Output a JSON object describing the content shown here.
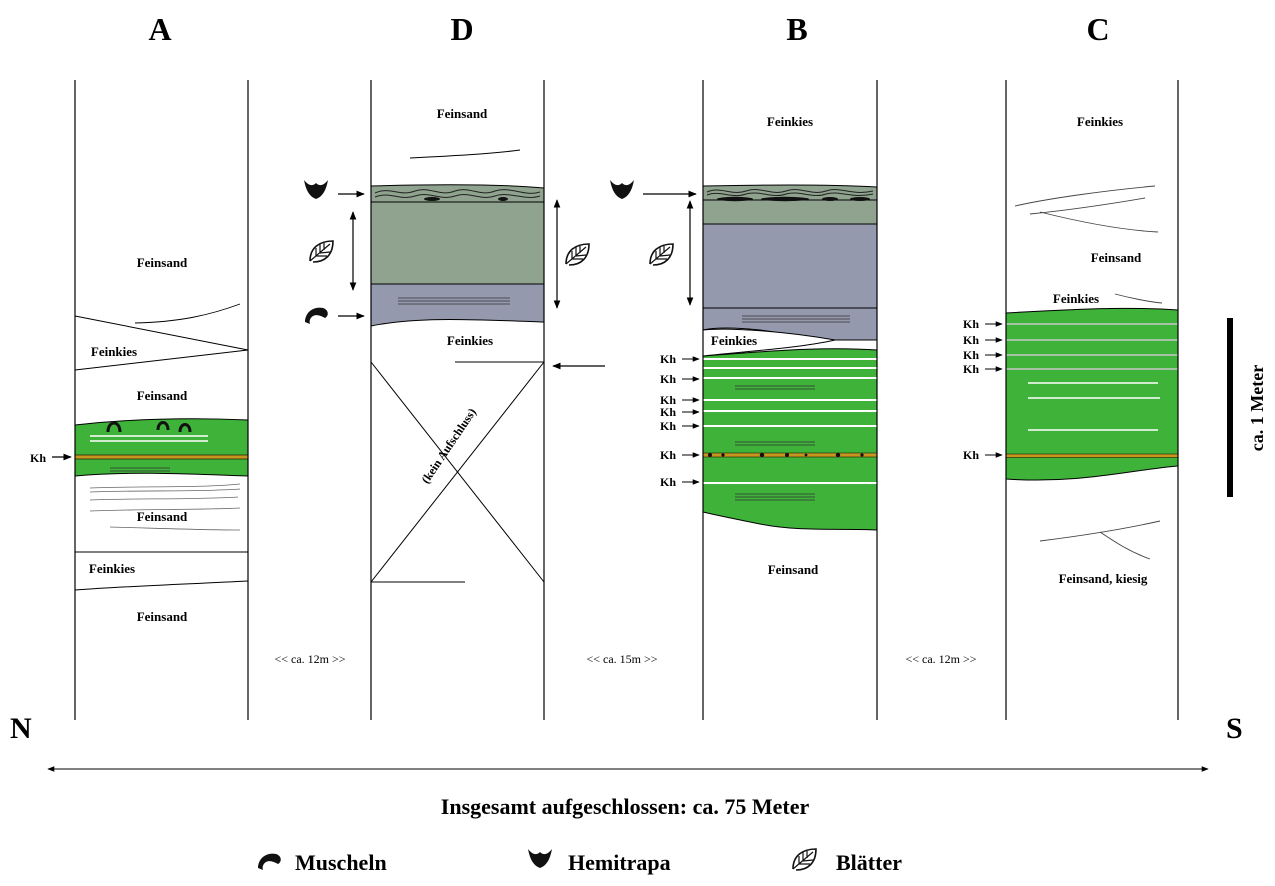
{
  "columns": {
    "A": {
      "letter": "A",
      "labels": [
        "Feinsand",
        "Feinkies",
        "Feinsand",
        "Feinsand",
        "Feinkies",
        "Feinsand"
      ],
      "kh": "Kh"
    },
    "D": {
      "letter": "D",
      "labels": [
        "Feinsand",
        "Feinkies"
      ],
      "gap_label": "(kein Aufschluss)"
    },
    "B": {
      "letter": "B",
      "labels": [
        "Feinkies",
        "Feinkies",
        "Feinsand"
      ],
      "kh": "Kh"
    },
    "C": {
      "letter": "C",
      "labels": [
        "Feinkies",
        "Feinsand",
        "Feinkies",
        "Feinsand, kiesig"
      ],
      "kh": "Kh"
    }
  },
  "distances": [
    "<< ca. 12m >>",
    "<< ca. 15m >>",
    "<< ca. 12m >>"
  ],
  "direction": {
    "north": "N",
    "south": "S"
  },
  "total_exposure": "Insgesamt aufgeschlossen: ca. 75 Meter",
  "scale_bar": "ca. 1 Meter",
  "legend": {
    "muscheln": "Muscheln",
    "hemitrapa": "Hemitrapa",
    "blaetter": "Blätter"
  },
  "colors": {
    "green": "#3fb23a",
    "grey_green": "#8fa38f",
    "grey_blue": "#9499ae",
    "lignite": "#c8951e",
    "fossil": "#1a1a1a"
  }
}
